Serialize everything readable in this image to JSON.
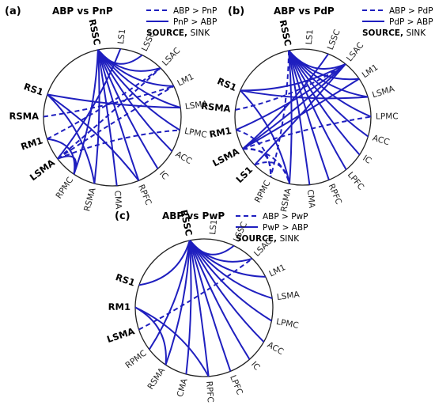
{
  "panels": [
    {
      "label": "(a)",
      "title": "ABP vs PnP",
      "legend": {
        "dashed": "ABP > PnP",
        "solid": "PnP > ABP",
        "source": "SOURCE",
        "sink": "SINK"
      },
      "nodes": [
        {
          "id": "RSSC",
          "bold": true
        },
        {
          "id": "LS1"
        },
        {
          "id": "LSSC"
        },
        {
          "id": "LSAC"
        },
        {
          "id": "LM1"
        },
        {
          "id": "LSMA"
        },
        {
          "id": "LPMC"
        },
        {
          "id": "ACC"
        },
        {
          "id": "IC"
        },
        {
          "id": "RPFC"
        },
        {
          "id": "CMA"
        },
        {
          "id": "RSMA"
        },
        {
          "id": "RPMC"
        },
        {
          "id": "LSMA",
          "bold": true
        },
        {
          "id": "RM1",
          "bold": true
        },
        {
          "id": "RSMA",
          "bold": true
        },
        {
          "id": "RS1",
          "bold": true
        }
      ],
      "edges": [
        {
          "from": 0,
          "to": 2,
          "style": "solid"
        },
        {
          "from": 0,
          "to": 3,
          "style": "solid"
        },
        {
          "from": 0,
          "to": 4,
          "style": "solid"
        },
        {
          "from": 0,
          "to": 5,
          "style": "solid"
        },
        {
          "from": 0,
          "to": 6,
          "style": "solid"
        },
        {
          "from": 0,
          "to": 7,
          "style": "solid"
        },
        {
          "from": 0,
          "to": 8,
          "style": "solid"
        },
        {
          "from": 0,
          "to": 9,
          "style": "solid"
        },
        {
          "from": 0,
          "to": 10,
          "style": "solid"
        },
        {
          "from": 0,
          "to": 11,
          "style": "solid"
        },
        {
          "from": 0,
          "to": 12,
          "style": "solid"
        },
        {
          "from": 16,
          "to": 5,
          "style": "solid"
        },
        {
          "from": 16,
          "to": 11,
          "style": "solid"
        },
        {
          "from": 16,
          "to": 9,
          "style": "solid"
        },
        {
          "from": 15,
          "to": 4,
          "style": "dashed"
        },
        {
          "from": 14,
          "to": 12,
          "style": "solid"
        },
        {
          "from": 14,
          "to": 3,
          "style": "dashed"
        },
        {
          "from": 13,
          "to": 3,
          "style": "dashed"
        },
        {
          "from": 13,
          "to": 4,
          "style": "dashed"
        },
        {
          "from": 13,
          "to": 6,
          "style": "dashed"
        },
        {
          "from": 13,
          "to": 12,
          "style": "solid"
        },
        {
          "from": 13,
          "to": 1,
          "style": "solid"
        }
      ]
    },
    {
      "label": "(b)",
      "title": "ABP vs PdP",
      "legend": {
        "dashed": "ABP > PdP",
        "solid": "PdP > ABP",
        "source": "SOURCE",
        "sink": "SINK"
      },
      "nodes": [
        {
          "id": "RSSC",
          "bold": true
        },
        {
          "id": "LS1"
        },
        {
          "id": "LSSC"
        },
        {
          "id": "LSAC"
        },
        {
          "id": "LM1"
        },
        {
          "id": "LSMA"
        },
        {
          "id": "LPMC"
        },
        {
          "id": "ACC"
        },
        {
          "id": "IC"
        },
        {
          "id": "LPFC"
        },
        {
          "id": "RPFC"
        },
        {
          "id": "CMA"
        },
        {
          "id": "RSMA"
        },
        {
          "id": "RPMC"
        },
        {
          "id": "LS1",
          "bold": true
        },
        {
          "id": "LSMA",
          "bold": true
        },
        {
          "id": "RM1",
          "bold": true
        },
        {
          "id": "RSMA",
          "bold": true
        },
        {
          "id": "RS1",
          "bold": true
        }
      ],
      "edges": [
        {
          "from": 0,
          "to": 3,
          "style": "solid"
        },
        {
          "from": 0,
          "to": 4,
          "style": "solid"
        },
        {
          "from": 0,
          "to": 5,
          "style": "solid"
        },
        {
          "from": 0,
          "to": 6,
          "style": "solid"
        },
        {
          "from": 0,
          "to": 7,
          "style": "solid"
        },
        {
          "from": 0,
          "to": 8,
          "style": "solid"
        },
        {
          "from": 0,
          "to": 9,
          "style": "solid"
        },
        {
          "from": 0,
          "to": 10,
          "style": "solid"
        },
        {
          "from": 0,
          "to": 11,
          "style": "solid"
        },
        {
          "from": 0,
          "to": 12,
          "style": "solid"
        },
        {
          "from": 0,
          "to": 13,
          "style": "dashed"
        },
        {
          "from": 18,
          "to": 3,
          "style": "solid"
        },
        {
          "from": 18,
          "to": 5,
          "style": "solid"
        },
        {
          "from": 18,
          "to": 12,
          "style": "solid"
        },
        {
          "from": 17,
          "to": 3,
          "style": "dashed"
        },
        {
          "from": 16,
          "to": 3,
          "style": "solid"
        },
        {
          "from": 16,
          "to": 13,
          "style": "dashed"
        },
        {
          "from": 15,
          "to": 2,
          "style": "solid"
        },
        {
          "from": 15,
          "to": 3,
          "style": "solid"
        },
        {
          "from": 15,
          "to": 4,
          "style": "solid"
        },
        {
          "from": 15,
          "to": 6,
          "style": "dashed"
        },
        {
          "from": 15,
          "to": 12,
          "style": "dashed"
        },
        {
          "from": 15,
          "to": 13,
          "style": "dashed"
        },
        {
          "from": 14,
          "to": 3,
          "style": "solid"
        },
        {
          "from": 14,
          "to": 12,
          "style": "dashed"
        }
      ]
    },
    {
      "label": "(c)",
      "title": "ABP vs PwP",
      "legend": {
        "dashed": "ABP > PwP",
        "solid": "PwP > ABP",
        "source": "SOURCE",
        "sink": "SINK"
      },
      "nodes": [
        {
          "id": "RSSC",
          "bold": true
        },
        {
          "id": "LS1"
        },
        {
          "id": "LSSC"
        },
        {
          "id": "LSAC"
        },
        {
          "id": "LM1"
        },
        {
          "id": "LSMA"
        },
        {
          "id": "LPMC"
        },
        {
          "id": "ACC"
        },
        {
          "id": "IC"
        },
        {
          "id": "LPFC"
        },
        {
          "id": "RPFC"
        },
        {
          "id": "CMA"
        },
        {
          "id": "RSMA"
        },
        {
          "id": "RPMC"
        },
        {
          "id": "LSMA",
          "bold": true
        },
        {
          "id": "RM1",
          "bold": true
        },
        {
          "id": "RS1",
          "bold": true
        }
      ],
      "edges": [
        {
          "from": 0,
          "to": 2,
          "style": "solid"
        },
        {
          "from": 0,
          "to": 3,
          "style": "solid"
        },
        {
          "from": 0,
          "to": 4,
          "style": "solid"
        },
        {
          "from": 0,
          "to": 5,
          "style": "solid"
        },
        {
          "from": 0,
          "to": 6,
          "style": "solid"
        },
        {
          "from": 0,
          "to": 7,
          "style": "solid"
        },
        {
          "from": 0,
          "to": 8,
          "style": "solid"
        },
        {
          "from": 0,
          "to": 9,
          "style": "solid"
        },
        {
          "from": 0,
          "to": 10,
          "style": "solid"
        },
        {
          "from": 0,
          "to": 11,
          "style": "solid"
        },
        {
          "from": 0,
          "to": 12,
          "style": "solid"
        },
        {
          "from": 0,
          "to": 13,
          "style": "solid"
        },
        {
          "from": 0,
          "to": 16,
          "style": "solid"
        },
        {
          "from": 15,
          "to": 10,
          "style": "solid"
        },
        {
          "from": 15,
          "to": 12,
          "style": "solid"
        },
        {
          "from": 14,
          "to": 3,
          "style": "dashed"
        }
      ]
    }
  ]
}
